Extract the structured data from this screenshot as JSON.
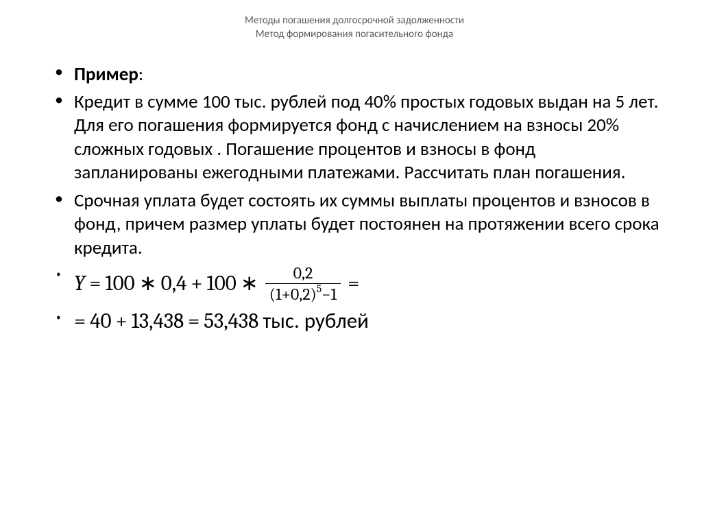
{
  "header": {
    "line1": "Методы погашения долгосрочной задолженности",
    "line2": "Метод формирования погасительного фонда"
  },
  "bullets": {
    "title": "Пример",
    "colon": ":",
    "para1": "Кредит в сумме 100 тыс. рублей под 40% простых годовых выдан на 5 лет. Для его погашения формируется фонд с начислением на взносы 20% сложных годовых . Погашение процентов и взносы в фонд запланированы ежегодными платежами. Рассчитать план погашения.",
    "para2": "Срочная уплата будет состоять их суммы выплаты процентов и взносов в фонд, причем размер уплаты будет постоянен на протяжении всего срока кредита.",
    "formula1": {
      "var": "Y",
      "eq": "=",
      "t1": "100",
      "mul": "∗",
      "t2": "0,4",
      "plus": "+",
      "t3": "100",
      "frac_num": "0,2",
      "frac_den_a": "(1+0,2)",
      "frac_den_exp": "5",
      "frac_den_b": "−1",
      "trail_eq": "="
    },
    "formula2": {
      "lead_eq": "=",
      "v1": "40",
      "plus": "+",
      "v2": "13,438",
      "eq2": "=",
      "v3": "53,438",
      "unit": "тыс. рублей"
    }
  },
  "style": {
    "background": "#ffffff",
    "text_color": "#000000",
    "header_color": "#595959",
    "body_fontsize": 27,
    "formula_fontsize": 31,
    "header_fontsize": 15
  }
}
